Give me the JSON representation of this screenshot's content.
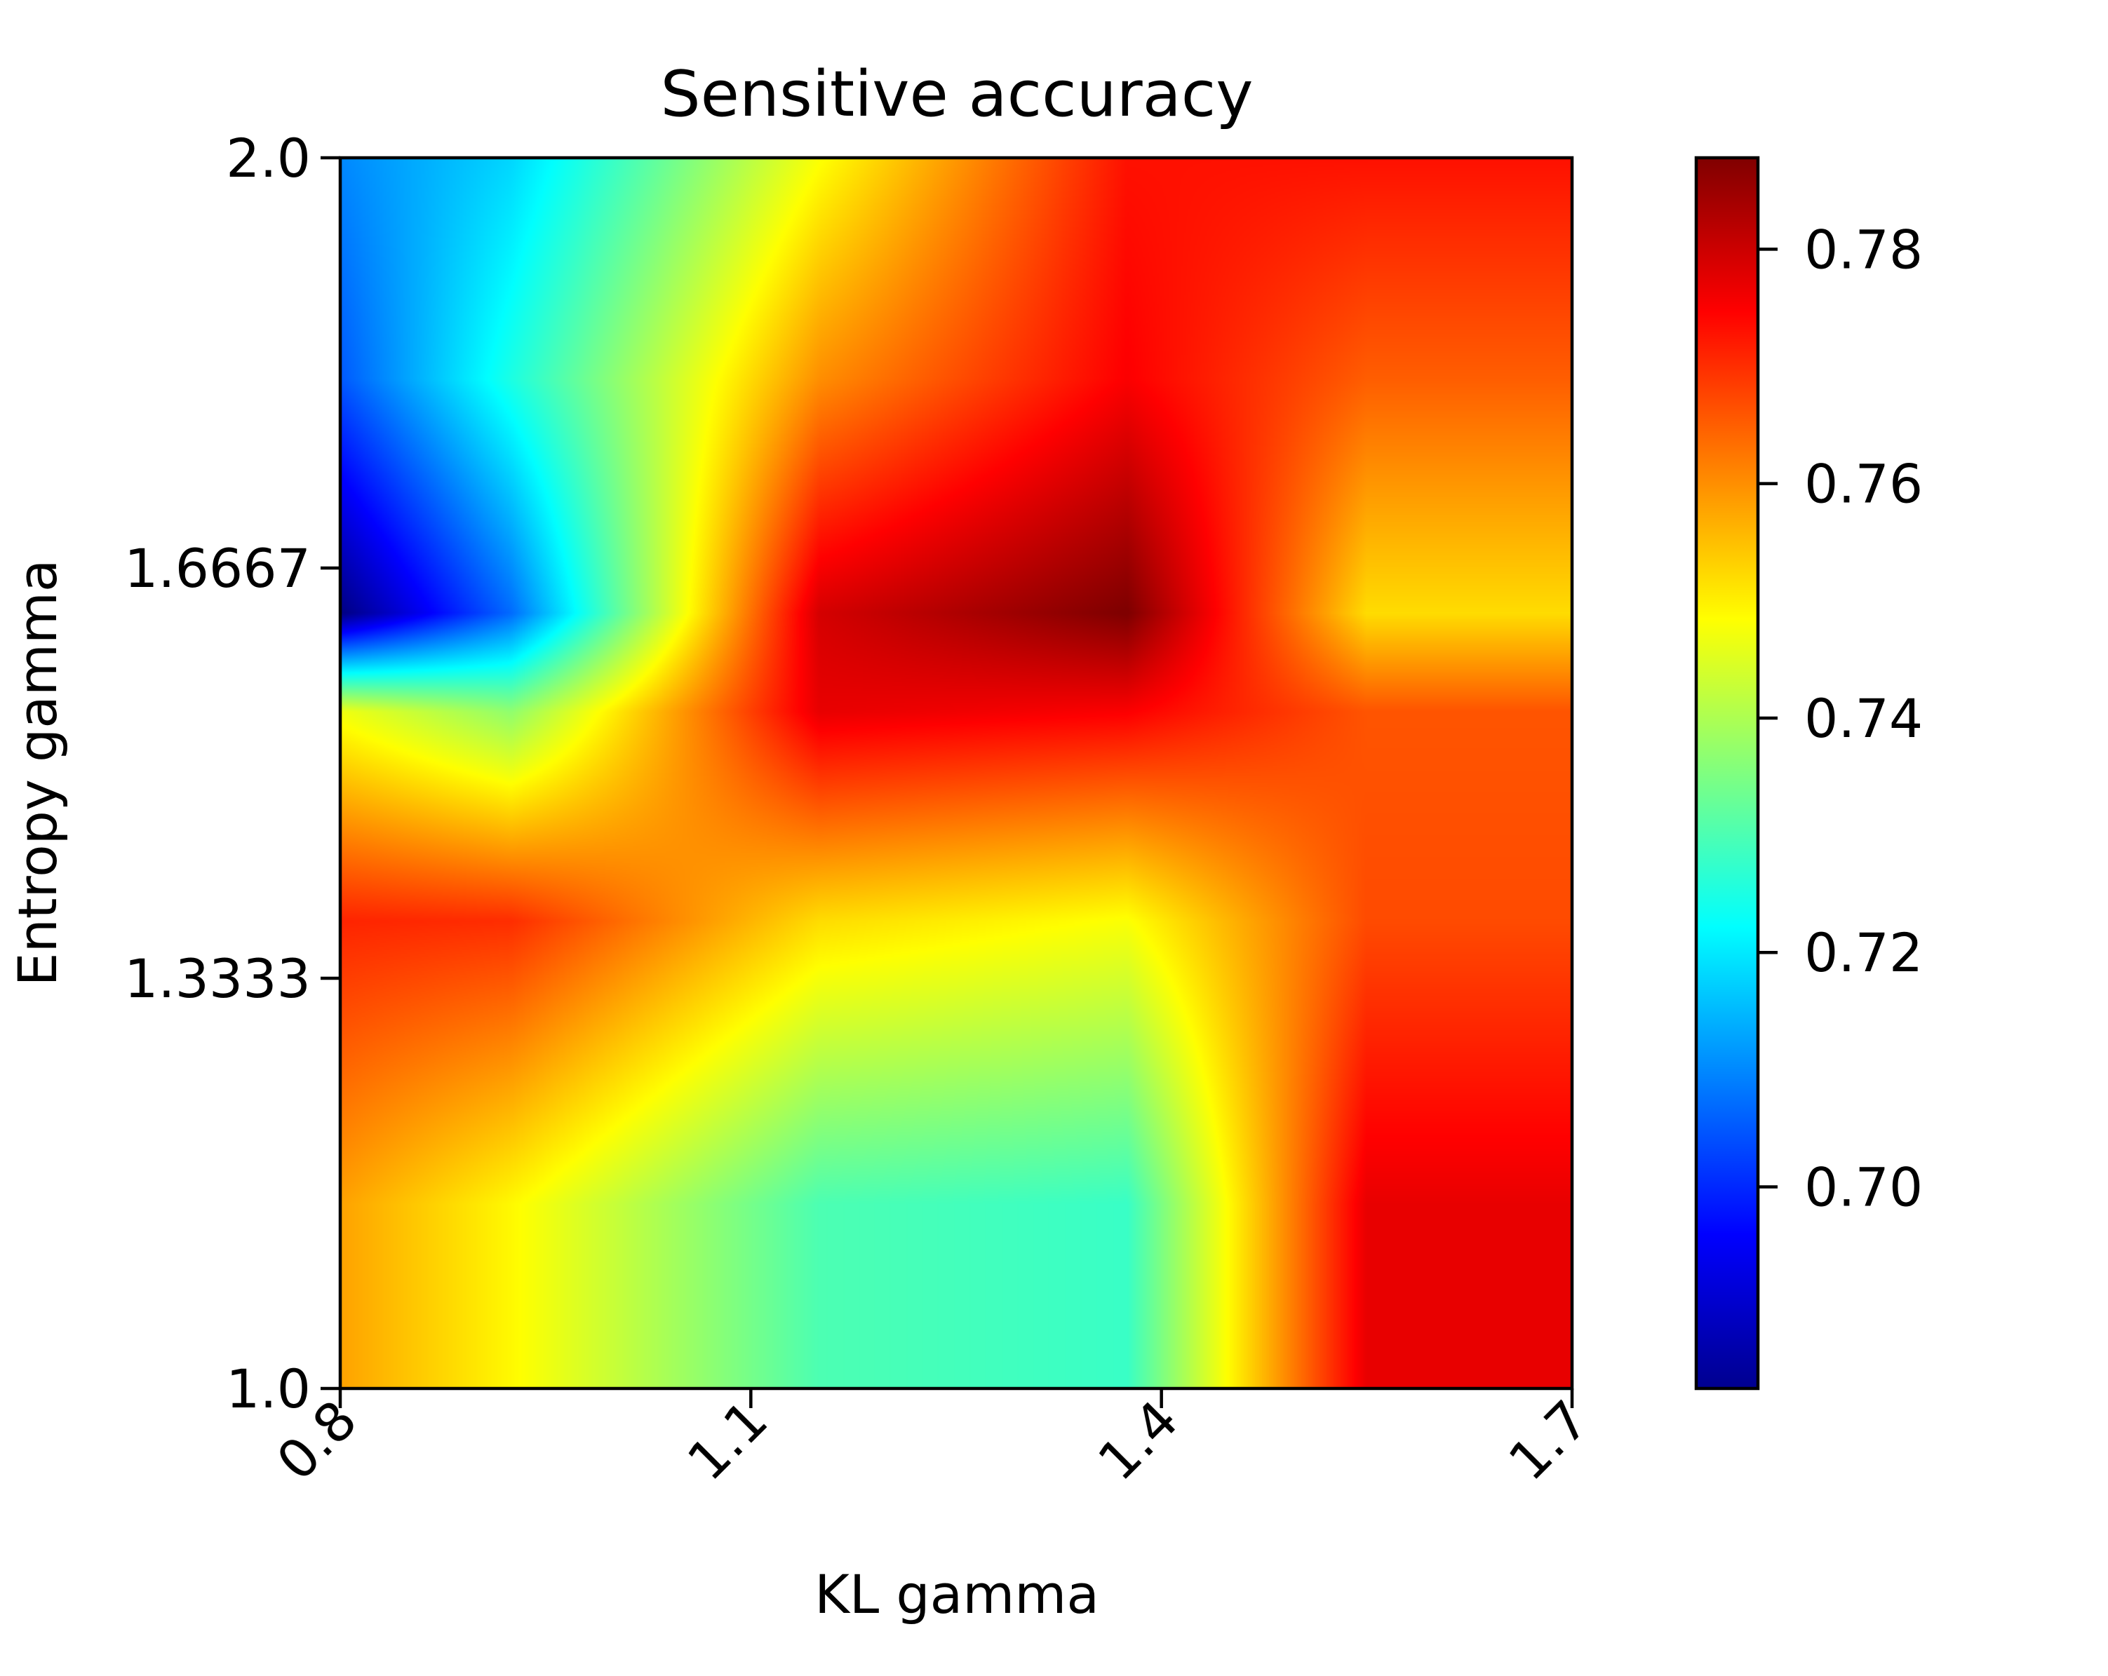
{
  "chart_data": {
    "type": "heatmap",
    "title": "Sensitive accuracy",
    "xlabel": "KL gamma",
    "ylabel": "Entropy gamma",
    "x_ticks": [
      "0.8",
      "1.1",
      "1.4",
      "1.7"
    ],
    "y_ticks": [
      "1.0",
      "1.3333",
      "1.6667",
      "2.0"
    ],
    "x_range": [
      0.8,
      1.7
    ],
    "y_range": [
      1.0,
      2.0
    ],
    "grid_x": [
      0.8,
      0.925,
      1.15,
      1.375,
      1.55
    ],
    "grid_y": [
      1.0,
      1.15,
      1.38,
      1.55,
      1.63,
      1.82,
      2.0
    ],
    "values": [
      [
        0.758,
        0.749,
        0.73,
        0.728,
        0.777
      ],
      [
        0.758,
        0.749,
        0.73,
        0.728,
        0.777
      ],
      [
        0.771,
        0.77,
        0.752,
        0.748,
        0.767
      ],
      [
        0.747,
        0.737,
        0.777,
        0.775,
        0.766
      ],
      [
        0.683,
        0.707,
        0.779,
        0.788,
        0.752
      ],
      [
        0.705,
        0.725,
        0.76,
        0.775,
        0.765
      ],
      [
        0.71,
        0.718,
        0.748,
        0.773,
        0.773
      ]
    ],
    "colormap": "jet",
    "interpolation": "bilinear",
    "vmin": 0.6828,
    "vmax": 0.7878,
    "colorbar": {
      "ticks": [
        0.7,
        0.72,
        0.74,
        0.76,
        0.78
      ],
      "labels": [
        "0.70",
        "0.72",
        "0.74",
        "0.76",
        "0.78"
      ],
      "placement": "right"
    },
    "grid": false
  }
}
